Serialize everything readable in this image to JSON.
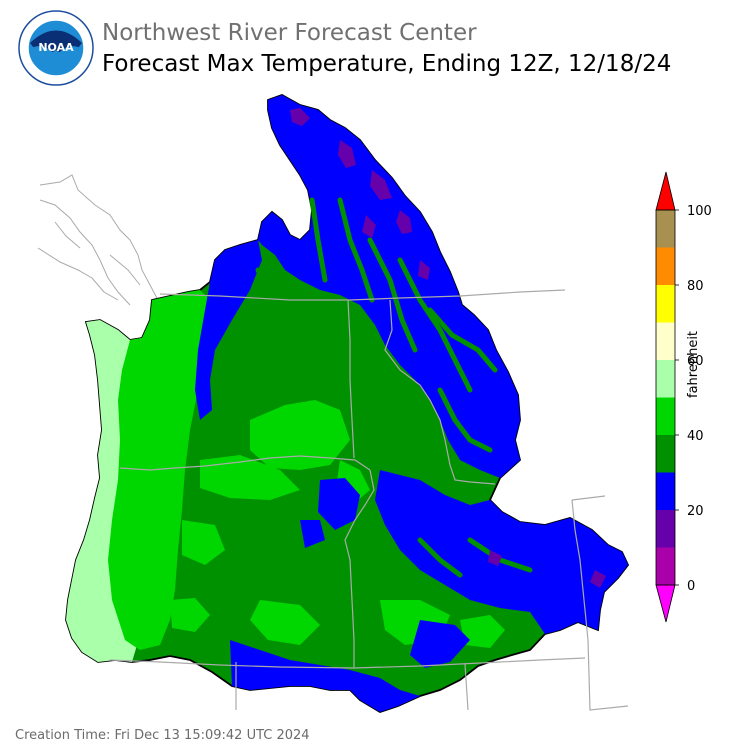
{
  "header": {
    "agency": "Northwest River Forecast Center",
    "product": "Forecast Max Temperature, Ending 12Z, 12/18/24"
  },
  "logo": {
    "name": "noaa-logo",
    "text": "NOAA",
    "ring_text": "NATIONAL OCEANIC AND ATMOSPHERIC ADMINISTRATION · U.S. DEPARTMENT OF COMMERCE"
  },
  "legend": {
    "unit_label": "fahrenheit",
    "min": 0,
    "max": 100,
    "ticks": [
      "0",
      "20",
      "40",
      "60",
      "80",
      "100"
    ],
    "bins": [
      {
        "from": 0,
        "to": 10,
        "color": "#aa00aa"
      },
      {
        "from": 10,
        "to": 20,
        "color": "#6600aa"
      },
      {
        "from": 20,
        "to": 30,
        "color": "#0000ff"
      },
      {
        "from": 30,
        "to": 40,
        "color": "#009100"
      },
      {
        "from": 40,
        "to": 50,
        "color": "#00d700"
      },
      {
        "from": 50,
        "to": 60,
        "color": "#aaffaa"
      },
      {
        "from": 60,
        "to": 70,
        "color": "#ffffcc"
      },
      {
        "from": 70,
        "to": 80,
        "color": "#ffff00"
      },
      {
        "from": 80,
        "to": 90,
        "color": "#ff8c00"
      },
      {
        "from": 90,
        "to": 100,
        "color": "#a89050"
      }
    ],
    "under_color": "#ff00ff",
    "over_color": "#ff0000"
  },
  "map": {
    "region": "Pacific Northwest (Columbia River basin and coastal drainages)",
    "colors": {
      "coast_light": "#aaffaa",
      "lowland_green": "#00d700",
      "mid_green": "#009100",
      "cold_blue": "#0000ff",
      "very_cold_purple": "#6600aa",
      "state_line": "#aaaaaa",
      "outline": "#000000"
    }
  },
  "footer": {
    "creation_time": "Creation Time: Fri Dec 13 15:09:42 UTC 2024"
  }
}
